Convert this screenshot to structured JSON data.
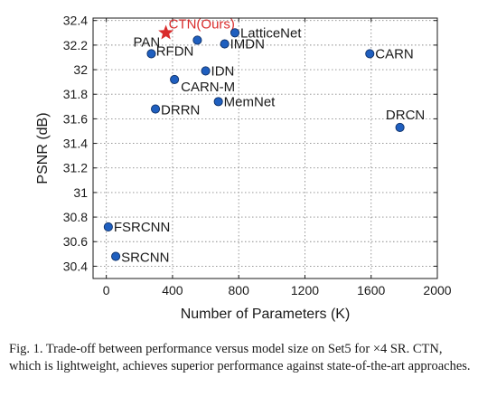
{
  "chart_data": {
    "type": "scatter",
    "xlabel": "Number of Parameters (K)",
    "ylabel": "PSNR (dB)",
    "xlim": [
      -80,
      2000
    ],
    "ylim": [
      30.3,
      32.42
    ],
    "xticks": [
      0,
      400,
      800,
      1200,
      1600,
      2000
    ],
    "yticks": [
      30.4,
      30.6,
      30.8,
      31,
      31.2,
      31.4,
      31.6,
      31.8,
      32,
      32.2,
      32.4
    ],
    "xtick_labels": [
      "0",
      "400",
      "800",
      "1200",
      "1600",
      "2000"
    ],
    "ytick_labels": [
      "30.4",
      "30.6",
      "30.8",
      "31",
      "31.2",
      "31.4",
      "31.6",
      "31.8",
      "32",
      "32.2",
      "32.4"
    ],
    "grid": true,
    "marker_color": "#1f5fbf",
    "highlight_color": "#d92b2b",
    "points": [
      {
        "label": "CTN(Ours)",
        "x": 360,
        "y": 32.3,
        "marker": "star",
        "highlight": true
      },
      {
        "label": "LatticeNet",
        "x": 777,
        "y": 32.3,
        "marker": "circle"
      },
      {
        "label": "IMDN",
        "x": 715,
        "y": 32.21,
        "marker": "circle"
      },
      {
        "label": "RFDN",
        "x": 550,
        "y": 32.24,
        "marker": "circle"
      },
      {
        "label": "PAN",
        "x": 272,
        "y": 32.13,
        "marker": "circle"
      },
      {
        "label": "CARN",
        "x": 1592,
        "y": 32.13,
        "marker": "circle"
      },
      {
        "label": "IDN",
        "x": 600,
        "y": 31.99,
        "marker": "circle"
      },
      {
        "label": "CARN-M",
        "x": 412,
        "y": 31.92,
        "marker": "circle"
      },
      {
        "label": "MemNet",
        "x": 677,
        "y": 31.74,
        "marker": "circle"
      },
      {
        "label": "DRRN",
        "x": 297,
        "y": 31.68,
        "marker": "circle"
      },
      {
        "label": "DRCN",
        "x": 1774,
        "y": 31.53,
        "marker": "circle"
      },
      {
        "label": "FSRCNN",
        "x": 12,
        "y": 30.72,
        "marker": "circle"
      },
      {
        "label": "SRCNN",
        "x": 57,
        "y": 30.48,
        "marker": "circle"
      }
    ]
  },
  "caption": {
    "text": "Fig. 1.   Trade-off between performance versus model size on Set5 for ×4 SR. CTN, which is lightweight, achieves superior performance against state-of-the-art approaches."
  }
}
